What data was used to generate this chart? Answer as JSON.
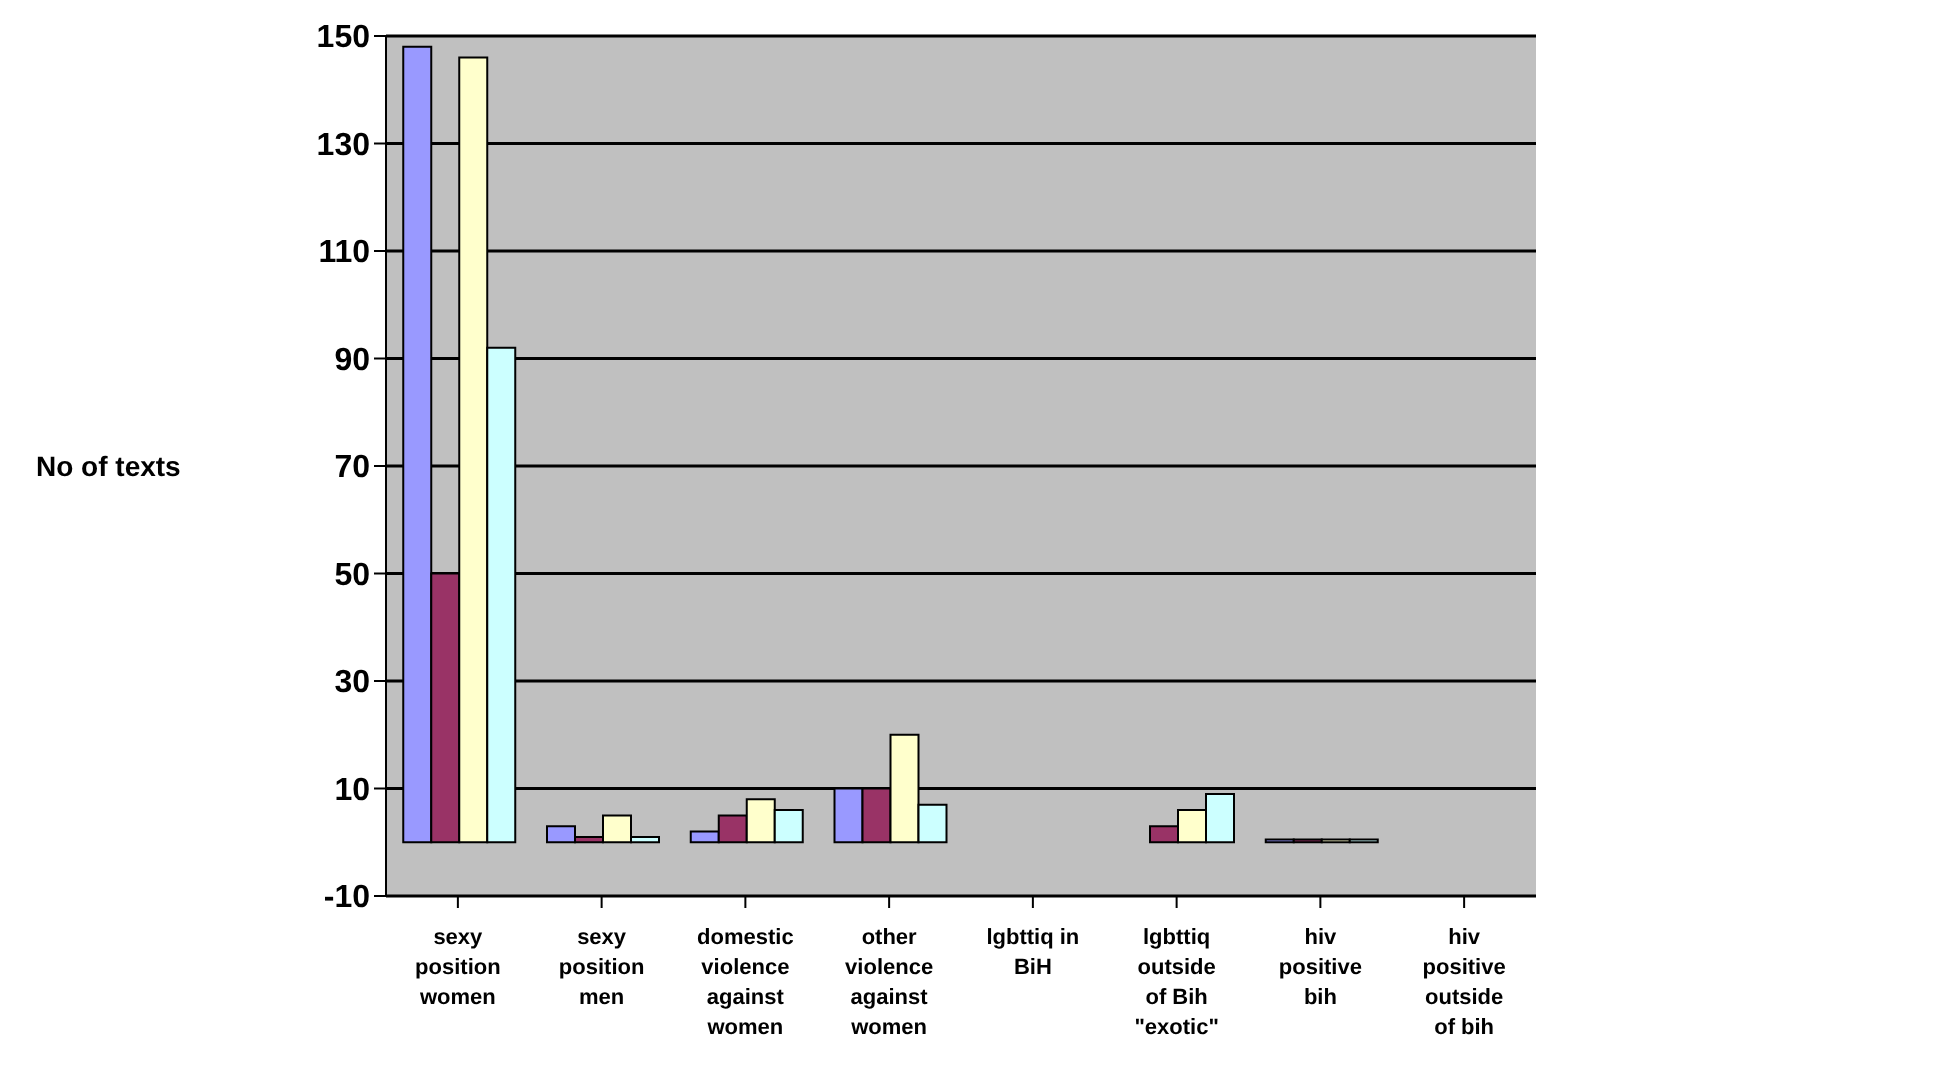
{
  "chart_data": {
    "type": "bar",
    "ylabel": "No of texts",
    "categories": [
      "sexy position women",
      "sexy position men",
      "domestic violence against women",
      "other violence against women",
      "lgbttiq in BiH",
      "lgbttiq outside of Bih \"exotic\"",
      "hiv positive bih",
      "hiv positive outside of bih"
    ],
    "series": [
      {
        "color": "#9999ff",
        "values": [
          148,
          3,
          2,
          10,
          0,
          0,
          0.5,
          0
        ]
      },
      {
        "color": "#993366",
        "values": [
          50,
          1,
          5,
          10,
          0,
          3,
          0.5,
          0
        ]
      },
      {
        "color": "#ffffcc",
        "values": [
          146,
          5,
          8,
          20,
          0,
          6,
          0.5,
          0
        ]
      },
      {
        "color": "#ccffff",
        "values": [
          92,
          1,
          6,
          7,
          0,
          9,
          0.5,
          0
        ]
      }
    ],
    "ylim": [
      -10,
      150
    ],
    "yticks": [
      -10,
      10,
      30,
      50,
      70,
      90,
      110,
      130,
      150
    ],
    "grid": "y",
    "legend": false
  }
}
